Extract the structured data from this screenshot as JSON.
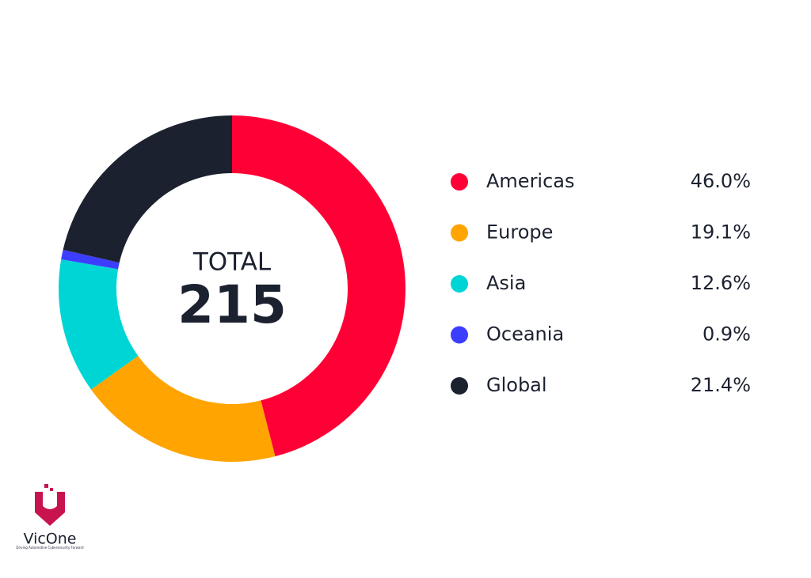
{
  "chart_data": {
    "type": "donut",
    "center_label": "TOTAL",
    "total": 215,
    "categories": [
      "Americas",
      "Europe",
      "Asia",
      "Oceania",
      "Global"
    ],
    "values": [
      46.0,
      19.1,
      12.6,
      0.9,
      21.4
    ],
    "value_labels": [
      "46.0%",
      "19.1%",
      "12.6%",
      "0.9%",
      "21.4%"
    ],
    "colors": [
      "#ff0036",
      "#ffa400",
      "#00d5d5",
      "#3d3dff",
      "#1c2130"
    ],
    "legend": "right"
  },
  "logo": {
    "name": "VicOne",
    "tagline": "Driving Automotive Cybersecurity Forward"
  }
}
